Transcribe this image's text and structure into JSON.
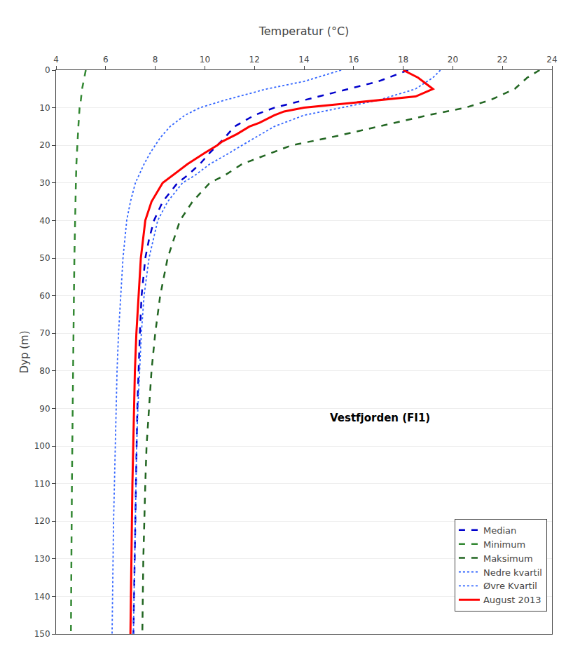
{
  "chart_data": {
    "type": "line",
    "x_label": "Temperatur (°C)",
    "y_label": "Dyp (m)",
    "xlim": [
      4,
      24
    ],
    "ylim": [
      150,
      0
    ],
    "xticks": [
      4,
      6,
      8,
      10,
      12,
      14,
      16,
      18,
      20,
      22,
      24
    ],
    "yticks": [
      0,
      10,
      20,
      30,
      40,
      50,
      60,
      70,
      80,
      90,
      100,
      110,
      120,
      130,
      140,
      150
    ],
    "grid": "y",
    "legend": "lower right",
    "annotations": [
      "Vestfjorden (FI1)"
    ],
    "series": [
      {
        "name": "Median",
        "color": "#0000cc",
        "line_style": "dashed",
        "y": [
          0,
          3,
          5,
          8,
          10,
          12,
          15,
          18,
          20,
          22,
          25,
          28,
          30,
          35,
          40,
          45,
          50,
          60,
          70,
          80,
          90,
          100,
          110,
          120,
          130,
          140,
          150
        ],
        "x": [
          18.2,
          17.0,
          15.8,
          14.0,
          12.8,
          12.0,
          11.2,
          10.8,
          10.5,
          10.2,
          9.8,
          9.3,
          8.9,
          8.3,
          7.95,
          7.75,
          7.6,
          7.45,
          7.38,
          7.32,
          7.28,
          7.25,
          7.22,
          7.2,
          7.18,
          7.15,
          7.12
        ]
      },
      {
        "name": "Minimum",
        "color": "#338833",
        "line_style": "dashed",
        "y": [
          0,
          3,
          5,
          8,
          10,
          15,
          20,
          25,
          30,
          35,
          40,
          50,
          60,
          70,
          80,
          90,
          100,
          110,
          120,
          130,
          140,
          150
        ],
        "x": [
          5.2,
          5.1,
          5.05,
          5.0,
          4.95,
          4.9,
          4.85,
          4.82,
          4.8,
          4.78,
          4.76,
          4.74,
          4.72,
          4.7,
          4.68,
          4.66,
          4.65,
          4.64,
          4.63,
          4.62,
          4.61,
          4.6
        ]
      },
      {
        "name": "Maksimum",
        "color": "#226622",
        "line_style": "dashed",
        "y": [
          0,
          2,
          5,
          8,
          10,
          12,
          15,
          18,
          20,
          25,
          28,
          30,
          35,
          40,
          50,
          60,
          70,
          80,
          90,
          100,
          110,
          120,
          130,
          140,
          150
        ],
        "x": [
          23.5,
          23.0,
          22.5,
          21.5,
          20.5,
          19.0,
          17.0,
          15.0,
          13.5,
          11.5,
          10.8,
          10.2,
          9.5,
          9.0,
          8.5,
          8.2,
          8.0,
          7.85,
          7.75,
          7.65,
          7.6,
          7.55,
          7.52,
          7.5,
          7.48
        ]
      },
      {
        "name": "Nedre kvartil",
        "color": "#3366ff",
        "line_style": "dotted",
        "y": [
          0,
          3,
          5,
          8,
          10,
          12,
          15,
          18,
          20,
          22,
          25,
          28,
          30,
          35,
          40,
          50,
          60,
          70,
          80,
          90,
          100,
          110,
          120,
          130,
          140,
          150
        ],
        "x": [
          15.5,
          14.0,
          12.5,
          10.8,
          9.8,
          9.2,
          8.6,
          8.2,
          8.0,
          7.8,
          7.55,
          7.35,
          7.2,
          7.0,
          6.85,
          6.7,
          6.6,
          6.52,
          6.46,
          6.42,
          6.38,
          6.35,
          6.32,
          6.3,
          6.28,
          6.26
        ]
      },
      {
        "name": "Øvre Kvartil",
        "color": "#3366ff",
        "line_style": "dotted",
        "y": [
          0,
          2,
          5,
          8,
          10,
          12,
          15,
          18,
          20,
          22,
          25,
          28,
          30,
          35,
          40,
          50,
          60,
          70,
          80,
          90,
          100,
          110,
          120,
          130,
          140,
          150
        ],
        "x": [
          19.5,
          19.2,
          18.5,
          17.0,
          15.5,
          14.0,
          12.8,
          12.0,
          11.5,
          11.0,
          10.2,
          9.6,
          9.1,
          8.5,
          8.1,
          7.75,
          7.55,
          7.44,
          7.36,
          7.3,
          7.25,
          7.22,
          7.2,
          7.18,
          7.15,
          7.12
        ]
      },
      {
        "name": "August 2013",
        "color": "#ff0000",
        "line_style": "solid",
        "y": [
          0,
          1,
          2,
          4,
          5,
          7,
          8,
          9,
          10,
          11,
          12,
          14,
          15,
          17,
          18,
          19,
          20,
          22,
          25,
          28,
          30,
          35,
          40,
          50,
          60,
          70,
          80,
          90,
          100,
          110,
          120,
          130,
          140,
          150
        ],
        "x": [
          18.0,
          18.3,
          18.6,
          19.0,
          19.2,
          18.5,
          17.0,
          15.5,
          14.0,
          13.2,
          12.8,
          12.2,
          11.8,
          11.3,
          11.0,
          10.7,
          10.5,
          10.0,
          9.3,
          8.7,
          8.3,
          7.85,
          7.6,
          7.42,
          7.32,
          7.24,
          7.18,
          7.14,
          7.1,
          7.08,
          7.06,
          7.04,
          7.02,
          7.0
        ]
      }
    ]
  }
}
